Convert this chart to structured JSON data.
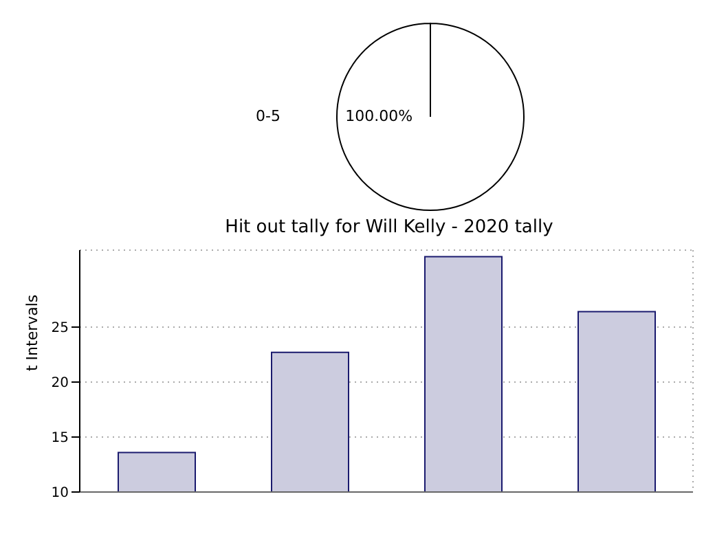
{
  "chart_data": [
    {
      "type": "pie",
      "categories": [
        "0-5"
      ],
      "values": [
        100
      ],
      "colors": [
        "#ffffff"
      ],
      "value_labels": [
        "100.00%"
      ]
    },
    {
      "type": "bar",
      "title": "Hit out tally for Will Kelly - 2020 tally",
      "ylabel": "t Intervals",
      "categories": [
        null,
        null,
        null,
        null
      ],
      "values": [
        13.6,
        22.7,
        31.4,
        26.4
      ],
      "color": "#ccccdf",
      "ylim": [
        10,
        32
      ],
      "yticks": [
        10,
        15,
        20,
        25
      ],
      "grid": true
    }
  ]
}
